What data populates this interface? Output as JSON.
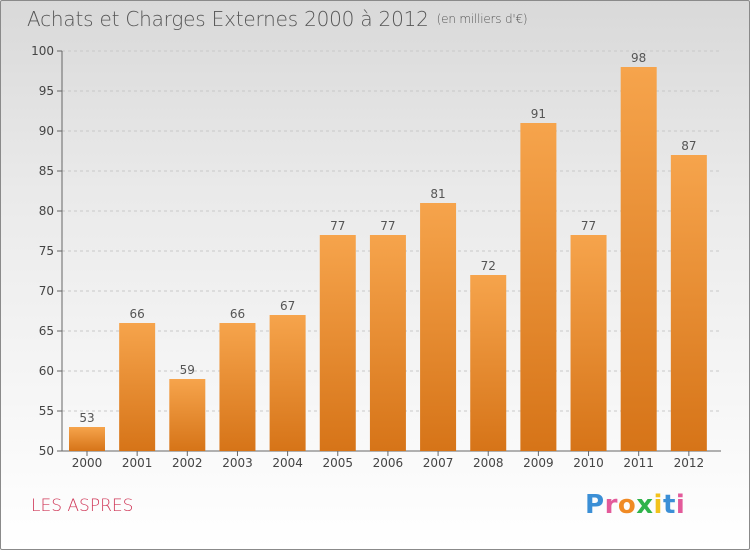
{
  "header": {
    "title": "Achats et Charges Externes 2000 à 2012",
    "unit": "(en milliers d'€)"
  },
  "footer": {
    "location": "LES ASPRES",
    "brand": "Proxiti"
  },
  "colors": {
    "bar_top": "#f6a44c",
    "bar_bottom": "#d67418",
    "location_text": "#d03a5a",
    "brand_letters": [
      "#3b8fd6",
      "#e35a9a",
      "#f08a24",
      "#2fb34a",
      "#f2c21b",
      "#3b8fd6",
      "#e35a9a"
    ]
  },
  "chart_data": {
    "type": "bar",
    "title": "Achats et Charges Externes 2000 à 2012",
    "categories": [
      "2000",
      "2001",
      "2002",
      "2003",
      "2004",
      "2005",
      "2006",
      "2007",
      "2008",
      "2009",
      "2010",
      "2011",
      "2012"
    ],
    "values": [
      53,
      66,
      59,
      66,
      67,
      77,
      77,
      81,
      72,
      91,
      77,
      98,
      87
    ],
    "ylim": [
      50,
      100
    ],
    "yticks": [
      50,
      55,
      60,
      65,
      70,
      75,
      80,
      85,
      90,
      95,
      100
    ],
    "grid": "horizontal-dashed",
    "data_labels": true
  }
}
